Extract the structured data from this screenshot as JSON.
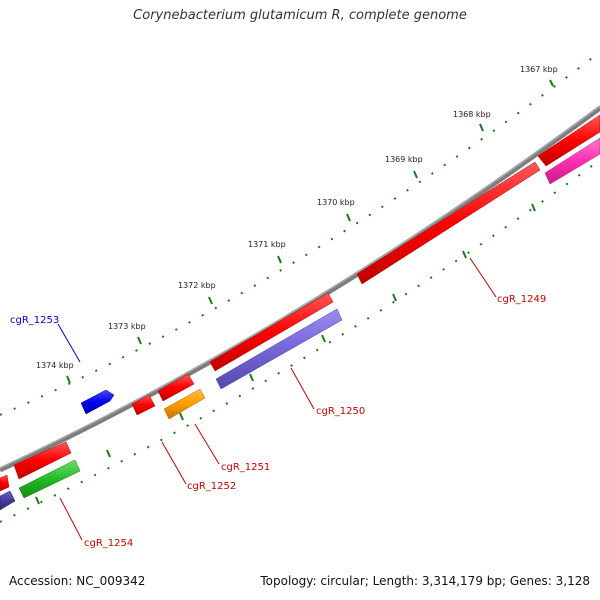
{
  "title": "Corynebacterium glutamicum R, complete genome",
  "footer": {
    "accession": "Accession: NC_009342",
    "summary": "Topology: circular; Length: 3,314,179 bp; Genes: 3,128"
  },
  "colors": {
    "backbone": "#7a7a7a",
    "tick": "#1a7a1a",
    "gene_label": "#cc0000",
    "highlight_label": "#0000cc"
  },
  "ticks": [
    {
      "label": "1367 kbp"
    },
    {
      "label": "1368 kbp"
    },
    {
      "label": "1369 kbp"
    },
    {
      "label": "1370 kbp"
    },
    {
      "label": "1371 kbp"
    },
    {
      "label": "1372 kbp"
    },
    {
      "label": "1373 kbp"
    },
    {
      "label": "1374 kbp"
    }
  ],
  "genes": [
    {
      "name": "cgR_1249"
    },
    {
      "name": "cgR_1250"
    },
    {
      "name": "cgR_1251"
    },
    {
      "name": "cgR_1252"
    },
    {
      "name": "cgR_1253"
    },
    {
      "name": "cgR_1254"
    }
  ]
}
